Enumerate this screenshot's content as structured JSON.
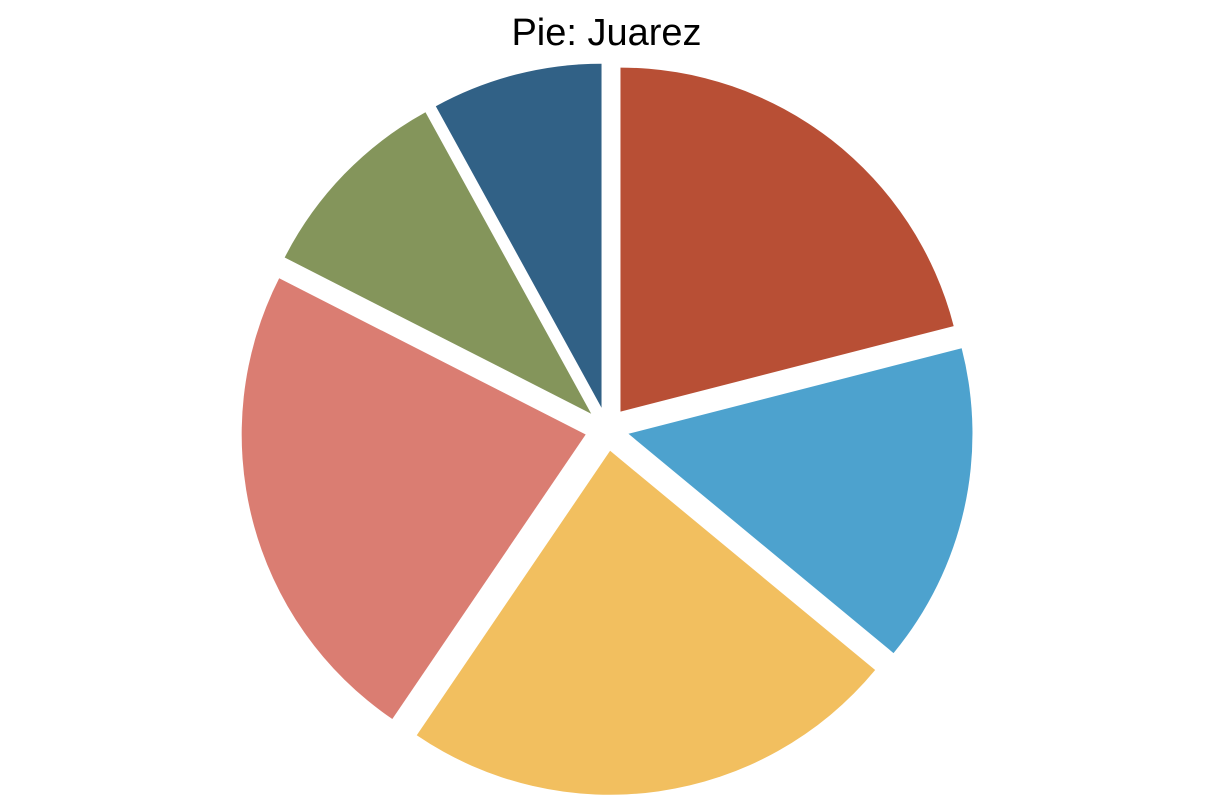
{
  "chart_data": {
    "type": "pie",
    "title": "Pie: Juarez",
    "start_angle_deg": 90,
    "direction": "clockwise",
    "exploded": true,
    "slices": [
      {
        "value": 21.0,
        "color": "#B84F35"
      },
      {
        "value": 15.0,
        "color": "#4DA2CE"
      },
      {
        "value": 23.5,
        "color": "#F2BF5F"
      },
      {
        "value": 23.0,
        "color": "#DA7D72"
      },
      {
        "value": 9.5,
        "color": "#84955B"
      },
      {
        "value": 8.0,
        "color": "#316186"
      }
    ]
  }
}
